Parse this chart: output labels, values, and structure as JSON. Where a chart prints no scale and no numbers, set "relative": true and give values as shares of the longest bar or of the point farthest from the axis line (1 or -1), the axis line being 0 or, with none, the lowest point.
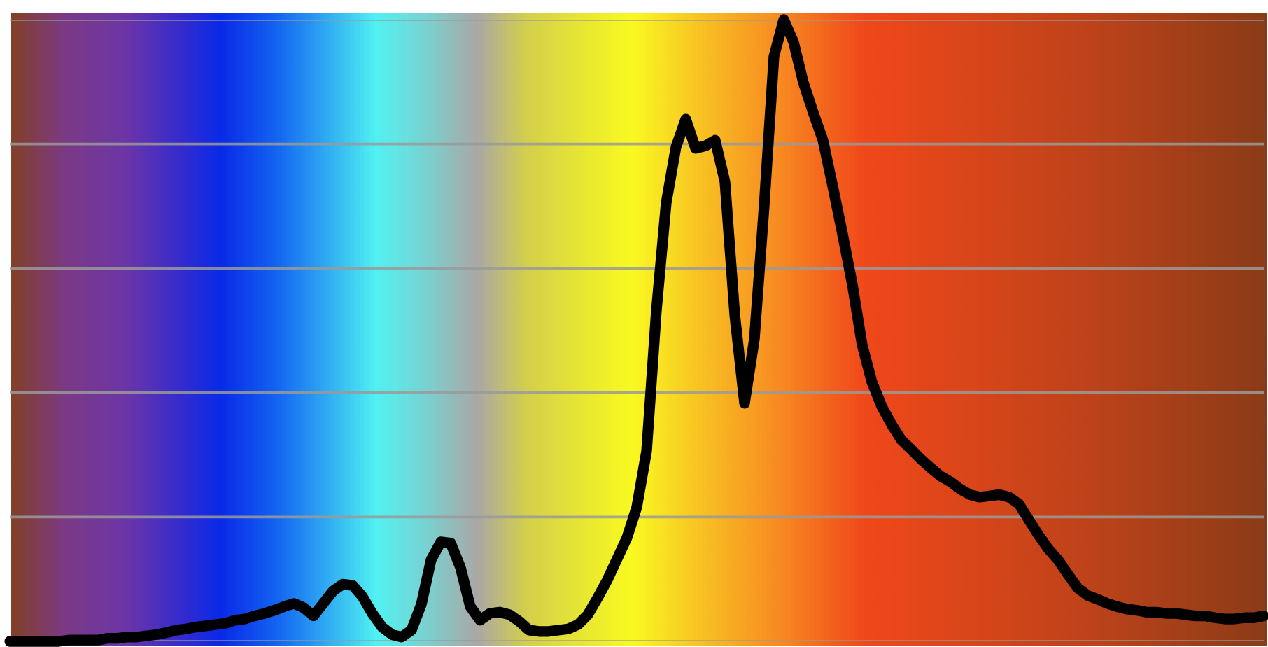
{
  "chart_data": {
    "type": "line",
    "relative": true,
    "grid": "y",
    "categories": [
      null,
      null,
      null,
      null,
      null,
      null,
      null,
      null,
      null,
      null,
      null,
      null,
      null,
      null,
      null,
      null,
      null,
      null,
      null,
      null,
      null,
      null,
      null,
      null,
      null,
      null,
      null,
      null,
      null,
      null,
      null,
      null,
      null,
      null,
      null,
      null,
      null,
      null,
      null,
      null,
      null,
      null,
      null,
      null,
      null,
      null,
      null,
      null,
      null,
      null,
      null,
      null,
      null,
      null,
      null,
      null,
      null,
      null,
      null,
      null,
      null,
      null,
      null,
      null,
      null,
      null,
      null,
      null,
      null,
      null,
      null,
      null,
      null,
      null,
      null,
      null,
      null,
      null,
      null,
      null,
      null,
      null,
      null,
      null,
      null,
      null,
      null,
      null,
      null,
      null,
      null,
      null,
      null,
      null,
      null,
      null,
      null,
      null,
      null,
      null,
      null,
      null,
      null,
      null,
      null,
      null,
      null,
      null,
      null,
      null,
      null,
      null,
      null,
      null,
      null,
      null,
      null,
      null,
      null,
      null,
      null,
      null,
      null,
      null,
      null,
      null,
      null,
      null,
      null
    ],
    "series": [
      {
        "color": "#000000",
        "values": [
          0,
          0,
          0,
          0,
          0,
          0,
          0.002,
          0.002,
          0.002,
          0.002,
          0.005,
          0.005,
          0.007,
          0.007,
          0.009,
          0.011,
          0.014,
          0.018,
          0.02,
          0.023,
          0.025,
          0.027,
          0.029,
          0.034,
          0.036,
          0.041,
          0.045,
          0.05,
          0.056,
          0.061,
          0.054,
          0.041,
          0.061,
          0.081,
          0.092,
          0.09,
          0.072,
          0.045,
          0.023,
          0.011,
          0.007,
          0.018,
          0.059,
          0.131,
          0.16,
          0.158,
          0.119,
          0.056,
          0.034,
          0.045,
          0.047,
          0.043,
          0.032,
          0.018,
          0.016,
          0.016,
          0.018,
          0.02,
          0.027,
          0.043,
          0.07,
          0.099,
          0.133,
          0.167,
          0.216,
          0.306,
          0.532,
          0.705,
          0.795,
          0.84,
          0.793,
          0.797,
          0.806,
          0.739,
          0.525,
          0.383,
          0.486,
          0.7,
          0.941,
          1.0,
          0.964,
          0.899,
          0.851,
          0.806,
          0.732,
          0.655,
          0.574,
          0.477,
          0.417,
          0.378,
          0.349,
          0.324,
          0.309,
          0.293,
          0.279,
          0.266,
          0.257,
          0.245,
          0.236,
          0.232,
          0.234,
          0.236,
          0.232,
          0.221,
          0.196,
          0.171,
          0.149,
          0.131,
          0.108,
          0.086,
          0.074,
          0.068,
          0.061,
          0.056,
          0.052,
          0.05,
          0.047,
          0.047,
          0.045,
          0.045,
          0.043,
          0.041,
          0.041,
          0.038,
          0.036,
          0.036,
          0.038,
          0.038,
          0.041
        ]
      }
    ]
  }
}
